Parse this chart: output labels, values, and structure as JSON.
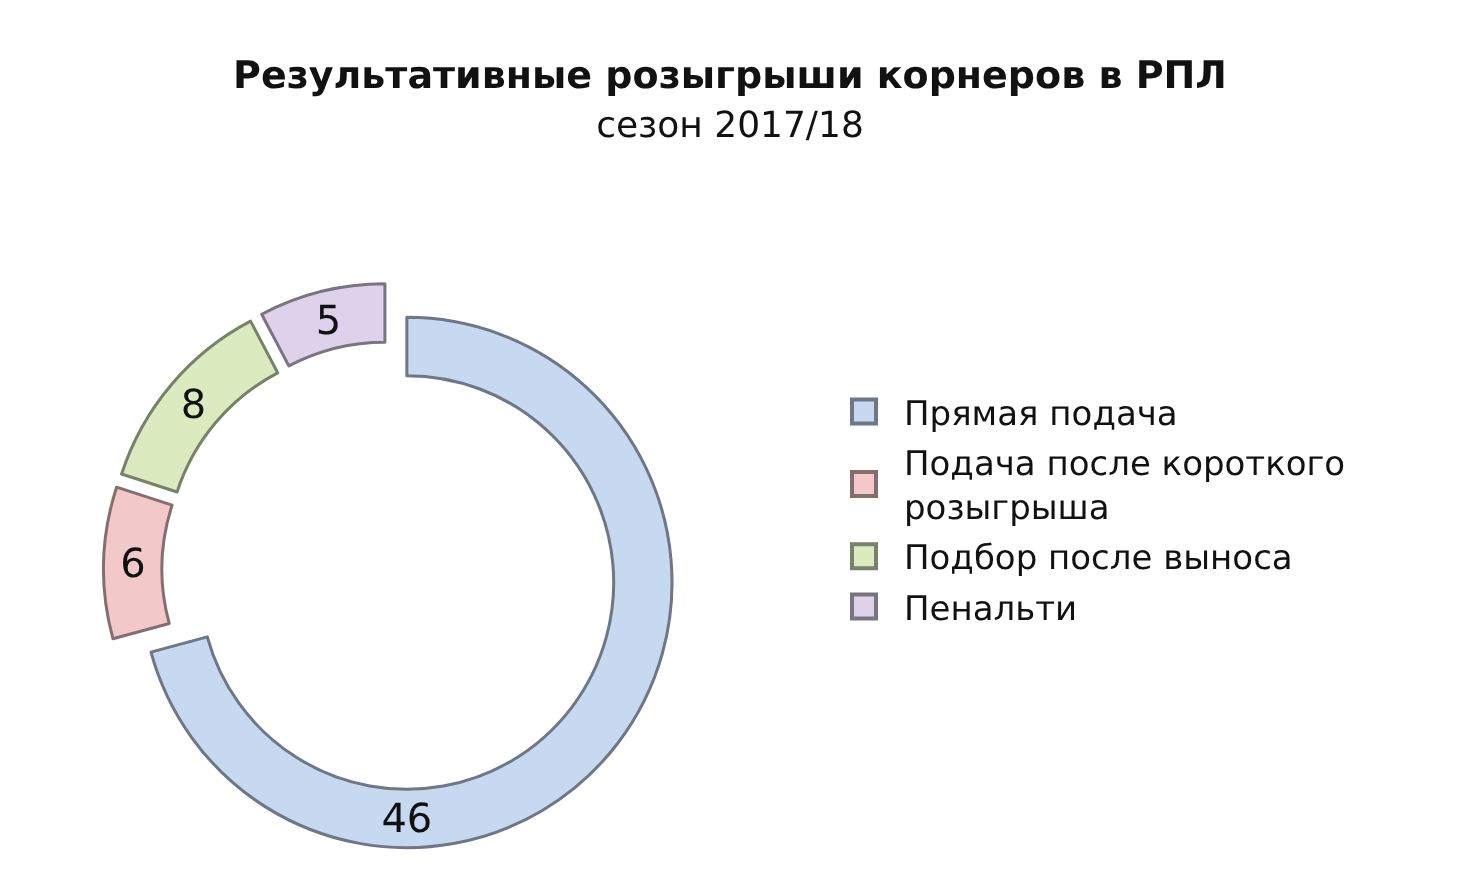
{
  "chart_data": {
    "type": "donut",
    "title": "Результативные розыгрыши корнеров в РПЛ",
    "subtitle": "сезон 2017/18",
    "categories": [
      "Прямая подача",
      "Подача после короткого розыгрыша",
      "Подбор после выноса",
      "Пенальти"
    ],
    "values": [
      46,
      6,
      8,
      5
    ],
    "colors": [
      "#c6d9f1",
      "#f2c9c8",
      "#dcebbf",
      "#ddd2ea"
    ],
    "data_labels": true,
    "legend": "right"
  }
}
